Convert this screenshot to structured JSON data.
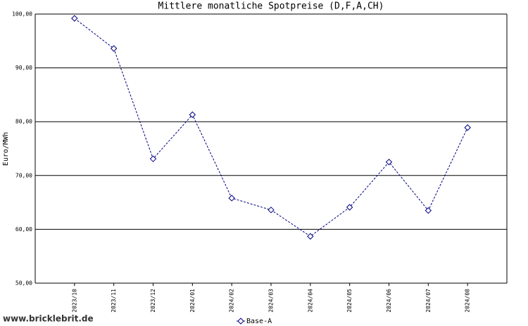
{
  "chart_data": {
    "type": "line",
    "title": "Mittlere monatliche Spotpreise (D,F,A,CH)",
    "y_label": "Euro/MWh",
    "categories": [
      "2023/10",
      "2023/11",
      "2023/12",
      "2024/01",
      "2024/02",
      "2024/03",
      "2024/04",
      "2024/05",
      "2024/06",
      "2024/07",
      "2024/08"
    ],
    "series": [
      {
        "name": "Base-A",
        "color": "#000080",
        "values": [
          99.2,
          93.6,
          73.1,
          81.3,
          65.8,
          63.6,
          58.7,
          64.1,
          72.5,
          63.5,
          78.9
        ]
      }
    ],
    "ylim": [
      50,
      100
    ],
    "yticks": [
      {
        "value": 50,
        "label": "50,00"
      },
      {
        "value": 60,
        "label": "60,00"
      },
      {
        "value": 70,
        "label": "70,00"
      },
      {
        "value": 80,
        "label": "80,00"
      },
      {
        "value": 90,
        "label": "90,00"
      },
      {
        "value": 100,
        "label": "100,00"
      }
    ],
    "grid": true,
    "legend": "bottom",
    "watermark": "www.bricklebrit.de"
  }
}
